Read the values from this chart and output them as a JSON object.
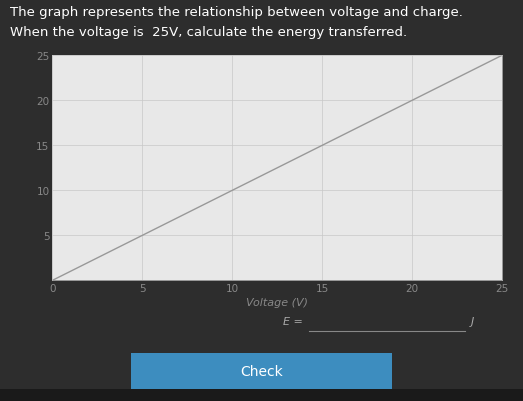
{
  "title_line1": "The graph represents the relationship between voltage and charge.",
  "title_line2": "When the voltage is  25V, calculate the energy transferred.",
  "xlabel": "Voltage (V)",
  "xlim": [
    0,
    25
  ],
  "ylim": [
    0,
    25
  ],
  "xticks": [
    0,
    5,
    10,
    15,
    20,
    25
  ],
  "yticks": [
    5,
    10,
    15,
    20,
    25
  ],
  "line_x": [
    0,
    25
  ],
  "line_y": [
    0,
    25
  ],
  "line_color": "#999999",
  "line_width": 1.0,
  "bg_outer": "#2d2d2d",
  "bg_plot": "#e8e8e8",
  "grid_color": "#c8c8c8",
  "tick_label_color": "#888888",
  "axis_label_color": "#888888",
  "title_color": "#ffffff",
  "answer_label": "E =",
  "answer_unit": "J",
  "check_button_text": "Check",
  "check_button_color": "#3d8dbf",
  "title_fontsize": 9.5,
  "axis_label_fontsize": 8,
  "tick_fontsize": 7.5
}
